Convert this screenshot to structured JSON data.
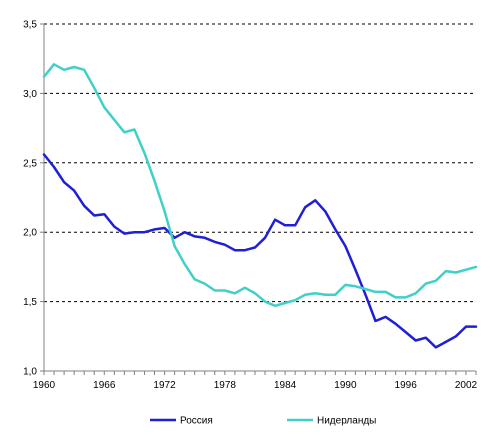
{
  "chart_data": {
    "type": "line",
    "title": "",
    "xlabel": "",
    "ylabel": "",
    "xlim": [
      1960,
      2003
    ],
    "ylim": [
      1.0,
      3.5
    ],
    "x_ticks": [
      1960,
      1966,
      1972,
      1978,
      1984,
      1990,
      1996,
      2002
    ],
    "y_ticks": [
      1.0,
      1.5,
      2.0,
      2.5,
      3.0,
      3.5
    ],
    "y_tick_labels": [
      "1,0",
      "1,5",
      "2,0",
      "2,5",
      "3,0",
      "3,5"
    ],
    "grid": "horizontal-dashed",
    "legend_position": "bottom",
    "x": [
      1960,
      1961,
      1962,
      1963,
      1964,
      1965,
      1966,
      1967,
      1968,
      1969,
      1970,
      1971,
      1972,
      1973,
      1974,
      1975,
      1976,
      1977,
      1978,
      1979,
      1980,
      1981,
      1982,
      1983,
      1984,
      1985,
      1986,
      1987,
      1988,
      1989,
      1990,
      1991,
      1992,
      1993,
      1994,
      1995,
      1996,
      1997,
      1998,
      1999,
      2000,
      2001,
      2002,
      2003
    ],
    "series": [
      {
        "name": "Россия",
        "color": "#1f1fd6",
        "values": [
          2.56,
          2.47,
          2.36,
          2.3,
          2.19,
          2.12,
          2.13,
          2.04,
          1.99,
          2.0,
          2.0,
          2.02,
          2.03,
          1.96,
          2.0,
          1.97,
          1.96,
          1.93,
          1.91,
          1.87,
          1.87,
          1.89,
          1.96,
          2.09,
          2.05,
          2.05,
          2.18,
          2.23,
          2.15,
          2.02,
          1.9,
          1.73,
          1.55,
          1.36,
          1.39,
          1.34,
          1.28,
          1.22,
          1.24,
          1.17,
          1.21,
          1.25,
          1.32,
          1.32
        ]
      },
      {
        "name": "Нидерланды",
        "color": "#40d0c8",
        "values": [
          3.12,
          3.21,
          3.17,
          3.19,
          3.17,
          3.04,
          2.9,
          2.81,
          2.72,
          2.74,
          2.57,
          2.37,
          2.15,
          1.9,
          1.77,
          1.66,
          1.63,
          1.58,
          1.58,
          1.56,
          1.6,
          1.56,
          1.5,
          1.47,
          1.49,
          1.51,
          1.55,
          1.56,
          1.55,
          1.55,
          1.62,
          1.61,
          1.59,
          1.57,
          1.57,
          1.53,
          1.53,
          1.56,
          1.63,
          1.65,
          1.72,
          1.71,
          1.73,
          1.75
        ]
      }
    ]
  }
}
